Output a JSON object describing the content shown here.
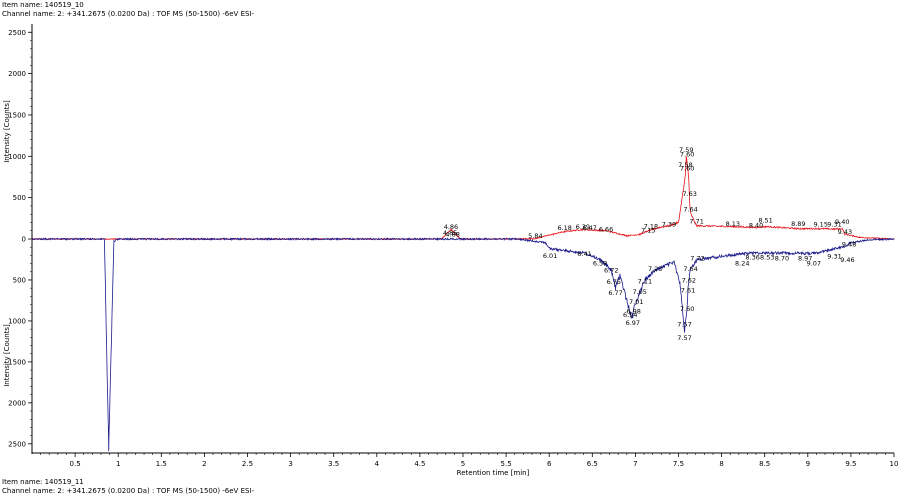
{
  "header": {
    "item_top": "Item name: 140519_10",
    "channel_top": "Channel name: 2: +341.2675 (0.0200 Da) : TOF MS (50-1500) -6eV ESI-",
    "item_bottom": "Item name: 140519_11",
    "channel_bottom": "Channel name: 2: +341.2675 (0.0200 Da) : TOF MS (50-1500) -6eV ESI-"
  },
  "chart_data": {
    "type": "line",
    "title": "",
    "xlabel": "Retention time [min]",
    "ylabel_top": "Intensity [Counts]",
    "ylabel_bottom": "Intensity [Counts]",
    "xlim": [
      0,
      10
    ],
    "ylim_top": [
      0,
      2600
    ],
    "ylim_bottom": [
      0,
      2600
    ],
    "x_ticks": [
      "0.5",
      "1",
      "1.5",
      "2",
      "2.5",
      "3",
      "3.5",
      "4",
      "4.5",
      "5",
      "5.5",
      "6",
      "6.5",
      "7",
      "7.5",
      "8",
      "8.5",
      "9",
      "9.5",
      "10"
    ],
    "y_ticks_top": [
      "0",
      "500",
      "1000",
      "1500",
      "2000",
      "2500"
    ],
    "y_ticks_bottom": [
      "0",
      "500",
      "1000",
      "1500",
      "2000",
      "2500"
    ],
    "grid": false,
    "series": [
      {
        "trace": "top",
        "color": "#e8141c",
        "baseline": 0,
        "noise": 6,
        "points": [
          [
            0,
            0
          ],
          [
            4.75,
            0
          ],
          [
            4.86,
            120
          ],
          [
            4.97,
            0
          ],
          [
            5.5,
            0
          ],
          [
            5.84,
            5
          ],
          [
            6.05,
            60
          ],
          [
            6.18,
            90
          ],
          [
            6.39,
            115
          ],
          [
            6.47,
            110
          ],
          [
            6.66,
            100
          ],
          [
            6.9,
            40
          ],
          [
            7.05,
            55
          ],
          [
            7.15,
            100
          ],
          [
            7.28,
            140
          ],
          [
            7.39,
            160
          ],
          [
            7.5,
            200
          ],
          [
            7.58,
            760
          ],
          [
            7.59,
            1000
          ],
          [
            7.6,
            940
          ],
          [
            7.62,
            700
          ],
          [
            7.63,
            430
          ],
          [
            7.64,
            310
          ],
          [
            7.71,
            160
          ],
          [
            8.13,
            150
          ],
          [
            8.4,
            140
          ],
          [
            8.51,
            150
          ],
          [
            8.89,
            125
          ],
          [
            9.15,
            125
          ],
          [
            9.31,
            120
          ],
          [
            9.4,
            125
          ],
          [
            9.43,
            60
          ],
          [
            9.6,
            20
          ],
          [
            10,
            0
          ]
        ]
      },
      {
        "trace": "bottom",
        "color": "#1a1a8c",
        "baseline": 0,
        "noise": 10,
        "points": [
          [
            0,
            0
          ],
          [
            0.84,
            0
          ],
          [
            0.89,
            2580
          ],
          [
            0.95,
            30
          ],
          [
            1.0,
            0
          ],
          [
            5.6,
            0
          ],
          [
            5.95,
            40
          ],
          [
            6.01,
            120
          ],
          [
            6.41,
            170
          ],
          [
            6.59,
            250
          ],
          [
            6.72,
            380
          ],
          [
            6.75,
            520
          ],
          [
            6.77,
            600
          ],
          [
            6.82,
            440
          ],
          [
            6.94,
            900
          ],
          [
            6.97,
            980
          ],
          [
            6.98,
            860
          ],
          [
            7.01,
            760
          ],
          [
            7.05,
            650
          ],
          [
            7.11,
            500
          ],
          [
            7.23,
            380
          ],
          [
            7.45,
            280
          ],
          [
            7.52,
            560
          ],
          [
            7.57,
            1110
          ],
          [
            7.6,
            860
          ],
          [
            7.61,
            610
          ],
          [
            7.62,
            500
          ],
          [
            7.64,
            360
          ],
          [
            7.72,
            250
          ],
          [
            8.24,
            180
          ],
          [
            8.36,
            170
          ],
          [
            8.53,
            170
          ],
          [
            8.7,
            170
          ],
          [
            8.97,
            175
          ],
          [
            9.07,
            175
          ],
          [
            9.31,
            120
          ],
          [
            9.46,
            80
          ],
          [
            9.48,
            50
          ],
          [
            9.7,
            10
          ],
          [
            10,
            0
          ]
        ]
      }
    ],
    "peak_labels_top": [
      {
        "text": "4.85",
        "x": 4.85,
        "y": 80
      },
      {
        "text": "4.86",
        "x": 4.86,
        "y": 150
      },
      {
        "text": "4.88",
        "x": 4.88,
        "y": 60
      },
      {
        "text": "5.84",
        "x": 5.84,
        "y": 40
      },
      {
        "text": "6.18",
        "x": 6.18,
        "y": 140
      },
      {
        "text": "6.39",
        "x": 6.39,
        "y": 150
      },
      {
        "text": "6.47",
        "x": 6.47,
        "y": 140
      },
      {
        "text": "6.66",
        "x": 6.66,
        "y": 120
      },
      {
        "text": "7.15",
        "x": 7.15,
        "y": 110
      },
      {
        "text": "7.18",
        "x": 7.18,
        "y": 160
      },
      {
        "text": "7.39",
        "x": 7.39,
        "y": 180
      },
      {
        "text": "7.58",
        "x": 7.58,
        "y": 900
      },
      {
        "text": "7.59",
        "x": 7.59,
        "y": 1080
      },
      {
        "text": "7.60",
        "x": 7.6,
        "y": 1030
      },
      {
        "text": "7.60",
        "x": 7.6,
        "y": 860
      },
      {
        "text": "7.63",
        "x": 7.63,
        "y": 550
      },
      {
        "text": "7.64",
        "x": 7.64,
        "y": 360
      },
      {
        "text": "7.71",
        "x": 7.71,
        "y": 220
      },
      {
        "text": "8.13",
        "x": 8.13,
        "y": 190
      },
      {
        "text": "8.40",
        "x": 8.4,
        "y": 170
      },
      {
        "text": "8.51",
        "x": 8.51,
        "y": 230
      },
      {
        "text": "8.89",
        "x": 8.89,
        "y": 190
      },
      {
        "text": "9.15",
        "x": 9.15,
        "y": 180
      },
      {
        "text": "9.31",
        "x": 9.31,
        "y": 180
      },
      {
        "text": "9.40",
        "x": 9.4,
        "y": 210
      },
      {
        "text": "9.43",
        "x": 9.43,
        "y": 90
      }
    ],
    "peak_labels_bottom": [
      {
        "text": "6.01",
        "x": 6.01,
        "y": 200
      },
      {
        "text": "6.41",
        "x": 6.41,
        "y": 180
      },
      {
        "text": "6.59",
        "x": 6.59,
        "y": 290
      },
      {
        "text": "6.72",
        "x": 6.72,
        "y": 380
      },
      {
        "text": "6.75",
        "x": 6.75,
        "y": 520
      },
      {
        "text": "6.77",
        "x": 6.77,
        "y": 650
      },
      {
        "text": "6.94",
        "x": 6.94,
        "y": 920
      },
      {
        "text": "6.97",
        "x": 6.97,
        "y": 1020
      },
      {
        "text": "6.98",
        "x": 6.98,
        "y": 880
      },
      {
        "text": "7.01",
        "x": 7.01,
        "y": 760
      },
      {
        "text": "7.05",
        "x": 7.05,
        "y": 640
      },
      {
        "text": "7.11",
        "x": 7.11,
        "y": 510
      },
      {
        "text": "7.23",
        "x": 7.23,
        "y": 360
      },
      {
        "text": "7.57",
        "x": 7.57,
        "y": 1200
      },
      {
        "text": "7.57",
        "x": 7.57,
        "y": 1040
      },
      {
        "text": "7.60",
        "x": 7.6,
        "y": 850
      },
      {
        "text": "7.61",
        "x": 7.61,
        "y": 620
      },
      {
        "text": "7.62",
        "x": 7.62,
        "y": 500
      },
      {
        "text": "7.64",
        "x": 7.64,
        "y": 360
      },
      {
        "text": "7.72",
        "x": 7.72,
        "y": 230
      },
      {
        "text": "8.24",
        "x": 8.24,
        "y": 290
      },
      {
        "text": "8.36",
        "x": 8.36,
        "y": 220
      },
      {
        "text": "8.53",
        "x": 8.53,
        "y": 220
      },
      {
        "text": "8.70",
        "x": 8.7,
        "y": 230
      },
      {
        "text": "8.97",
        "x": 8.97,
        "y": 230
      },
      {
        "text": "9.07",
        "x": 9.07,
        "y": 290
      },
      {
        "text": "9.31",
        "x": 9.31,
        "y": 210
      },
      {
        "text": "9.46",
        "x": 9.46,
        "y": 250
      },
      {
        "text": "9.48",
        "x": 9.48,
        "y": 60
      }
    ]
  }
}
